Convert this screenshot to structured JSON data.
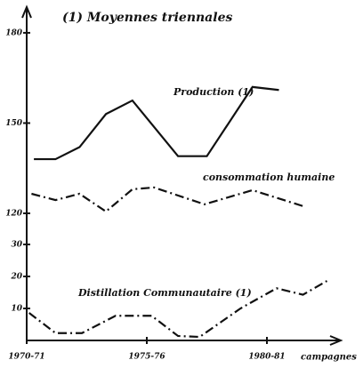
{
  "chart_data": {
    "type": "line",
    "title": "(1) Moyennes triennales",
    "x_label": "campagnes",
    "xlim": [
      1970,
      1983
    ],
    "xticks": [
      {
        "value": 1970,
        "label": "1970-71"
      },
      {
        "value": 1975,
        "label": "1975-76"
      },
      {
        "value": 1980,
        "label": "1980-81"
      }
    ],
    "ylim": [
      0,
      185
    ],
    "axis_break": [
      30,
      120
    ],
    "yticks": [
      180,
      150,
      120,
      30,
      20,
      10
    ],
    "color": "#111",
    "series": [
      {
        "name": "Production (1)",
        "style": "solid",
        "x": [
          1970.3,
          1971.2,
          1972.2,
          1973.3,
          1974.4,
          1976.3,
          1977.5,
          1979.4,
          1980.5
        ],
        "values": [
          138,
          138,
          142,
          153,
          157.5,
          139,
          139,
          162,
          161
        ]
      },
      {
        "name": "consommation humaine",
        "style": "dashdot",
        "x": [
          1970.2,
          1971.2,
          1972.2,
          1973.3,
          1974.4,
          1975.3,
          1977.4,
          1979.4,
          1981.5
        ],
        "values": [
          126.5,
          124.4,
          126.5,
          120.6,
          128,
          128.6,
          123,
          127.7,
          122.4
        ]
      },
      {
        "name": "Distillation Communautaire (1)",
        "style": "dashdot",
        "x": [
          1970.1,
          1971.2,
          1972.3,
          1973.7,
          1975.2,
          1976.3,
          1977.2,
          1978.9,
          1980.4,
          1981.5,
          1982.5
        ],
        "values": [
          8.6,
          2.3,
          2.3,
          7.7,
          7.7,
          1.4,
          1.1,
          10,
          16.3,
          14.3,
          18.6
        ]
      }
    ]
  }
}
